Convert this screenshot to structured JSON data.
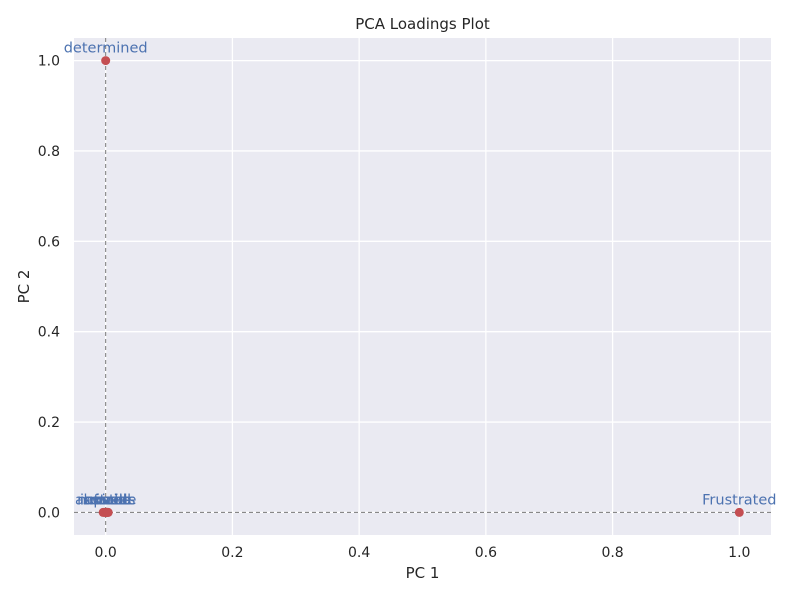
{
  "chart_data": {
    "type": "scatter",
    "title": "PCA Loadings Plot",
    "xlabel": "PC 1",
    "ylabel": "PC 2",
    "xlim": [
      -0.05,
      1.05
    ],
    "ylim": [
      -0.05,
      1.05
    ],
    "xticks": [
      0.0,
      0.2,
      0.4,
      0.6,
      0.8,
      1.0
    ],
    "yticks": [
      0.0,
      0.2,
      0.4,
      0.6,
      0.8,
      1.0
    ],
    "xtick_labels": [
      "0.0",
      "0.2",
      "0.4",
      "0.6",
      "0.8",
      "1.0"
    ],
    "ytick_labels": [
      "0.0",
      "0.2",
      "0.4",
      "0.6",
      "0.8",
      "1.0"
    ],
    "grid": true,
    "reference_lines": {
      "x": 0,
      "y": 0,
      "style": "dashed"
    },
    "points": [
      {
        "label": "determined",
        "x": 0.0,
        "y": 1.0
      },
      {
        "label": "Frustrated",
        "x": 1.0,
        "y": 0.0
      },
      {
        "label": "anxious",
        "x": -0.004,
        "y": 0.0
      },
      {
        "label": "upset",
        "x": -0.002,
        "y": 0.0
      },
      {
        "label": "afraid",
        "x": 0.0,
        "y": 0.0
      },
      {
        "label": "nervous",
        "x": 0.001,
        "y": 0.0
      },
      {
        "label": "scared",
        "x": 0.002,
        "y": 0.0
      },
      {
        "label": "hostile",
        "x": 0.003,
        "y": 0.0
      },
      {
        "label": "irritable",
        "x": 0.004,
        "y": 0.0
      }
    ],
    "colors": {
      "point": "#c44e52",
      "label": "#4c72b0",
      "background": "#eaeaf2",
      "grid": "#ffffff",
      "refline": "#777777"
    }
  }
}
